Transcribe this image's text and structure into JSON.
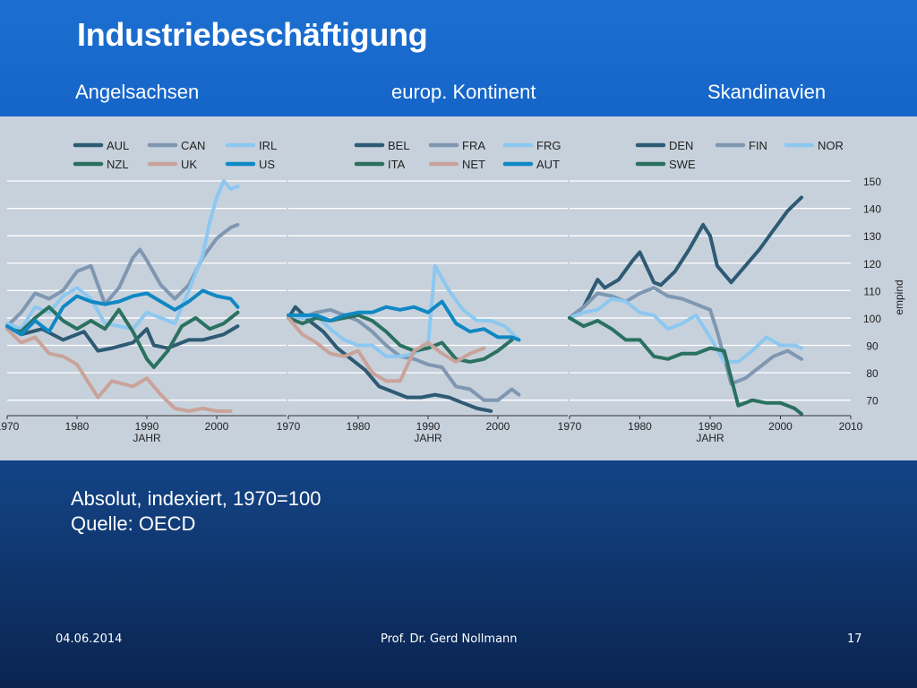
{
  "slide": {
    "title": "Industriebeschäftigung",
    "groups": [
      "Angelsachsen",
      "europ. Kontinent",
      "Skandinavien"
    ],
    "notes": [
      "Absolut, indexiert, 1970=100",
      "Quelle: OECD"
    ],
    "footer": {
      "date": "04.06.2014",
      "author": "Prof. Dr. Gerd Nollmann",
      "page": "17"
    }
  },
  "colors": {
    "dark": "#2e5a73",
    "grey": "#7f97b1",
    "light": "#8cc8f0",
    "green": "#2a7160",
    "salmon": "#c9a39a",
    "blue": "#0f88c4"
  },
  "chart_data": [
    {
      "type": "line",
      "xlabel": "JAHR",
      "ylabel": "empind",
      "xlim": [
        1970,
        2010
      ],
      "ylim": [
        65,
        150
      ],
      "xticks": [
        1970,
        1980,
        1990,
        2000,
        2010
      ],
      "yticks": [
        70,
        80,
        90,
        100,
        110,
        120,
        130,
        140,
        150
      ],
      "grid": "horizontal",
      "legend_position": "top",
      "panels": [
        {
          "xticks": [
            "1970",
            "1980",
            "1990",
            "2000"
          ],
          "series": [
            {
              "name": "AUL",
              "color": "dark",
              "x": [
                1970,
                1972,
                1975,
                1978,
                1981,
                1983,
                1985,
                1988,
                1990,
                1991,
                1993,
                1996,
                1998,
                2001,
                2003
              ],
              "y": [
                97,
                94,
                96,
                92,
                95,
                88,
                89,
                91,
                96,
                90,
                89,
                92,
                92,
                94,
                97
              ]
            },
            {
              "name": "CAN",
              "color": "grey",
              "x": [
                1970,
                1972,
                1974,
                1976,
                1978,
                1980,
                1982,
                1984,
                1986,
                1988,
                1989,
                1990,
                1992,
                1994,
                1996,
                1998,
                2000,
                2002,
                2003
              ],
              "y": [
                97,
                102,
                109,
                107,
                110,
                117,
                119,
                105,
                111,
                122,
                125,
                121,
                112,
                107,
                112,
                122,
                129,
                133,
                134
              ]
            },
            {
              "name": "IRL",
              "color": "light",
              "x": [
                1970,
                1972,
                1974,
                1976,
                1978,
                1980,
                1982,
                1984,
                1986,
                1988,
                1990,
                1992,
                1994,
                1996,
                1998,
                1999,
                2000,
                2001,
                2002,
                2003
              ],
              "y": [
                98,
                96,
                104,
                102,
                108,
                111,
                107,
                98,
                97,
                96,
                102,
                100,
                98,
                110,
                123,
                135,
                144,
                150,
                147,
                148
              ]
            },
            {
              "name": "NZL",
              "color": "green",
              "x": [
                1970,
                1972,
                1974,
                1976,
                1978,
                1980,
                1982,
                1984,
                1986,
                1988,
                1990,
                1991,
                1993,
                1995,
                1997,
                1999,
                2001,
                2003
              ],
              "y": [
                96,
                95,
                100,
                104,
                99,
                96,
                99,
                96,
                103,
                95,
                85,
                82,
                88,
                97,
                100,
                96,
                98,
                102
              ]
            },
            {
              "name": "UK",
              "color": "salmon",
              "x": [
                1970,
                1972,
                1974,
                1976,
                1978,
                1980,
                1982,
                1983,
                1985,
                1988,
                1990,
                1992,
                1994,
                1996,
                1998,
                2000,
                2002
              ],
              "y": [
                96,
                91,
                93,
                87,
                86,
                83,
                75,
                71,
                77,
                75,
                78,
                72,
                67,
                66,
                67,
                66,
                66
              ]
            },
            {
              "name": "US",
              "color": "blue",
              "x": [
                1970,
                1972,
                1974,
                1976,
                1978,
                1980,
                1982,
                1984,
                1986,
                1988,
                1990,
                1992,
                1994,
                1996,
                1998,
                2000,
                2002,
                2003
              ],
              "y": [
                97,
                94,
                99,
                95,
                104,
                108,
                106,
                105,
                106,
                108,
                109,
                106,
                103,
                106,
                110,
                108,
                107,
                104
              ]
            }
          ]
        },
        {
          "xticks": [
            "1970",
            "1980",
            "1990",
            "2000"
          ],
          "series": [
            {
              "name": "BEL",
              "color": "dark",
              "x": [
                1970,
                1971,
                1973,
                1975,
                1977,
                1979,
                1981,
                1983,
                1985,
                1987,
                1989,
                1991,
                1993,
                1995,
                1997,
                1999
              ],
              "y": [
                100,
                104,
                99,
                95,
                89,
                85,
                81,
                75,
                73,
                71,
                71,
                72,
                71,
                69,
                67,
                66
              ]
            },
            {
              "name": "FRA",
              "color": "grey",
              "x": [
                1970,
                1972,
                1974,
                1976,
                1978,
                1980,
                1982,
                1984,
                1986,
                1988,
                1990,
                1992,
                1994,
                1996,
                1998,
                2000,
                2002,
                2003
              ],
              "y": [
                101,
                100,
                102,
                103,
                101,
                99,
                95,
                90,
                86,
                85,
                83,
                82,
                75,
                74,
                70,
                70,
                74,
                72
              ]
            },
            {
              "name": "FRG",
              "color": "light",
              "x": [
                1970,
                1972,
                1974,
                1976,
                1978,
                1980,
                1982,
                1984,
                1986,
                1988,
                1990,
                1991,
                1993,
                1995,
                1997,
                1999,
                2001,
                2003
              ],
              "y": [
                101,
                100,
                101,
                96,
                92,
                90,
                90,
                86,
                86,
                87,
                90,
                119,
                110,
                103,
                99,
                99,
                97,
                92
              ]
            },
            {
              "name": "ITA",
              "color": "green",
              "x": [
                1970,
                1972,
                1974,
                1976,
                1978,
                1980,
                1982,
                1984,
                1986,
                1988,
                1990,
                1992,
                1994,
                1996,
                1998,
                2000,
                2002
              ],
              "y": [
                100,
                98,
                100,
                99,
                100,
                101,
                99,
                95,
                90,
                88,
                89,
                91,
                85,
                84,
                85,
                88,
                92
              ]
            },
            {
              "name": "NET",
              "color": "salmon",
              "x": [
                1970,
                1972,
                1974,
                1976,
                1978,
                1980,
                1982,
                1984,
                1986,
                1988,
                1990,
                1992,
                1994,
                1996,
                1998
              ],
              "y": [
                100,
                94,
                91,
                87,
                86,
                88,
                80,
                77,
                77,
                88,
                91,
                87,
                84,
                87,
                89
              ]
            },
            {
              "name": "AUT",
              "color": "blue",
              "x": [
                1970,
                1972,
                1974,
                1976,
                1978,
                1980,
                1982,
                1984,
                1986,
                1988,
                1990,
                1992,
                1994,
                1996,
                1998,
                2000,
                2002,
                2003
              ],
              "y": [
                101,
                101,
                101,
                99,
                101,
                102,
                102,
                104,
                103,
                104,
                102,
                106,
                98,
                95,
                96,
                93,
                93,
                92
              ]
            }
          ]
        },
        {
          "xticks": [
            "1970",
            "1980",
            "1990",
            "2000",
            "2010"
          ],
          "series": [
            {
              "name": "DEN",
              "color": "dark",
              "x": [
                1970,
                1972,
                1974,
                1975,
                1977,
                1979,
                1980,
                1982,
                1983,
                1985,
                1987,
                1989,
                1990,
                1991,
                1993,
                1995,
                1997,
                1999,
                2001,
                2003
              ],
              "y": [
                100,
                104,
                114,
                111,
                114,
                121,
                124,
                113,
                112,
                117,
                125,
                134,
                130,
                119,
                113,
                119,
                125,
                132,
                139,
                144
              ]
            },
            {
              "name": "FIN",
              "color": "grey",
              "x": [
                1970,
                1972,
                1974,
                1976,
                1978,
                1980,
                1982,
                1984,
                1986,
                1988,
                1990,
                1991,
                1993,
                1995,
                1997,
                1999,
                2001,
                2003
              ],
              "y": [
                100,
                104,
                109,
                108,
                106,
                109,
                111,
                108,
                107,
                105,
                103,
                95,
                76,
                78,
                82,
                86,
                88,
                85
              ]
            },
            {
              "name": "NOR",
              "color": "light",
              "x": [
                1970,
                1972,
                1974,
                1976,
                1978,
                1980,
                1982,
                1984,
                1986,
                1988,
                1990,
                1992,
                1994,
                1996,
                1998,
                2000,
                2002,
                2003
              ],
              "y": [
                100,
                102,
                103,
                107,
                106,
                102,
                101,
                96,
                98,
                101,
                93,
                84,
                84,
                88,
                93,
                90,
                90,
                89
              ]
            },
            {
              "name": "SWE",
              "color": "green",
              "x": [
                1970,
                1972,
                1974,
                1976,
                1978,
                1980,
                1982,
                1984,
                1986,
                1988,
                1990,
                1992,
                1994,
                1996,
                1998,
                2000,
                2002,
                2003
              ],
              "y": [
                100,
                97,
                99,
                96,
                92,
                92,
                86,
                85,
                87,
                87,
                89,
                88,
                68,
                70,
                69,
                69,
                67,
                65
              ]
            }
          ]
        }
      ]
    }
  ]
}
